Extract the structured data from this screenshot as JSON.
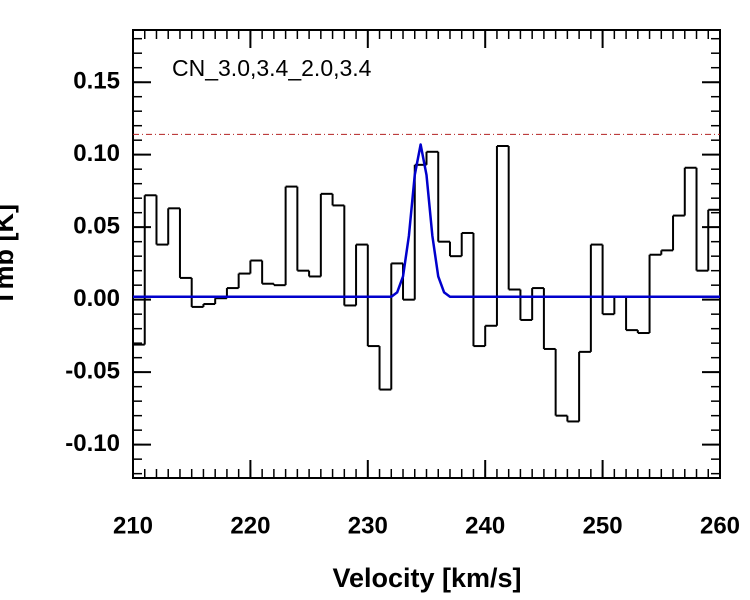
{
  "chart_data": {
    "type": "histogram",
    "annotation": "CN_3.0,3.4_2.0,3.4",
    "xlabel": "Velocity [km/s]",
    "ylabel": "Tmb [K]",
    "xlim": [
      210,
      260
    ],
    "ylim": [
      -0.123,
      0.186
    ],
    "xticks": [
      210,
      220,
      230,
      240,
      250,
      260
    ],
    "yticks": [
      {
        "value": -0.1,
        "label": "-0.10"
      },
      {
        "value": -0.05,
        "label": "-0.05"
      },
      {
        "value": 0,
        "label": "0.00"
      },
      {
        "value": 0.05,
        "label": "0.05"
      },
      {
        "value": 0.1,
        "label": "0.10"
      },
      {
        "value": 0.15,
        "label": "0.15"
      }
    ],
    "bins": [
      210,
      211,
      212,
      213,
      214,
      215,
      216,
      217,
      218,
      219,
      220,
      221,
      222,
      223,
      224,
      225,
      226,
      227,
      228,
      229,
      230,
      231,
      232,
      233,
      234,
      235,
      236,
      237,
      238,
      239,
      240,
      241,
      242,
      243,
      244,
      245,
      246,
      247,
      248,
      249,
      250,
      251,
      252,
      253,
      254,
      255,
      256,
      257,
      258,
      259,
      260
    ],
    "values": [
      -0.031,
      0.072,
      0.038,
      0.063,
      0.015,
      -0.005,
      -0.003,
      0.001,
      0.008,
      0.018,
      0.027,
      0.011,
      0.01,
      0.078,
      0.02,
      0.016,
      0.073,
      0.065,
      -0.004,
      0.038,
      -0.032,
      -0.062,
      0.025,
      0.0,
      0.093,
      0.102,
      0.04,
      0.03,
      0.046,
      -0.032,
      -0.018,
      0.106,
      0.007,
      -0.014,
      0.008,
      -0.034,
      -0.08,
      -0.084,
      -0.036,
      0.038,
      -0.01,
      0.002,
      -0.021,
      -0.023,
      0.031,
      0.034,
      0.058,
      0.091,
      0.02,
      0.062
    ],
    "color": "#000000",
    "fit": {
      "color": "#0000cc",
      "x": [
        210,
        230,
        231,
        232,
        232.5,
        233,
        233.5,
        234,
        234.5,
        235,
        235.5,
        236,
        236.5,
        237,
        238,
        260
      ],
      "values": [
        0.002,
        0.002,
        0.002,
        0.002,
        0.005,
        0.016,
        0.044,
        0.086,
        0.107,
        0.086,
        0.044,
        0.016,
        0.005,
        0.002,
        0.002,
        0.002
      ]
    },
    "threshold": {
      "value": 0.114,
      "color": "#b22222"
    }
  }
}
